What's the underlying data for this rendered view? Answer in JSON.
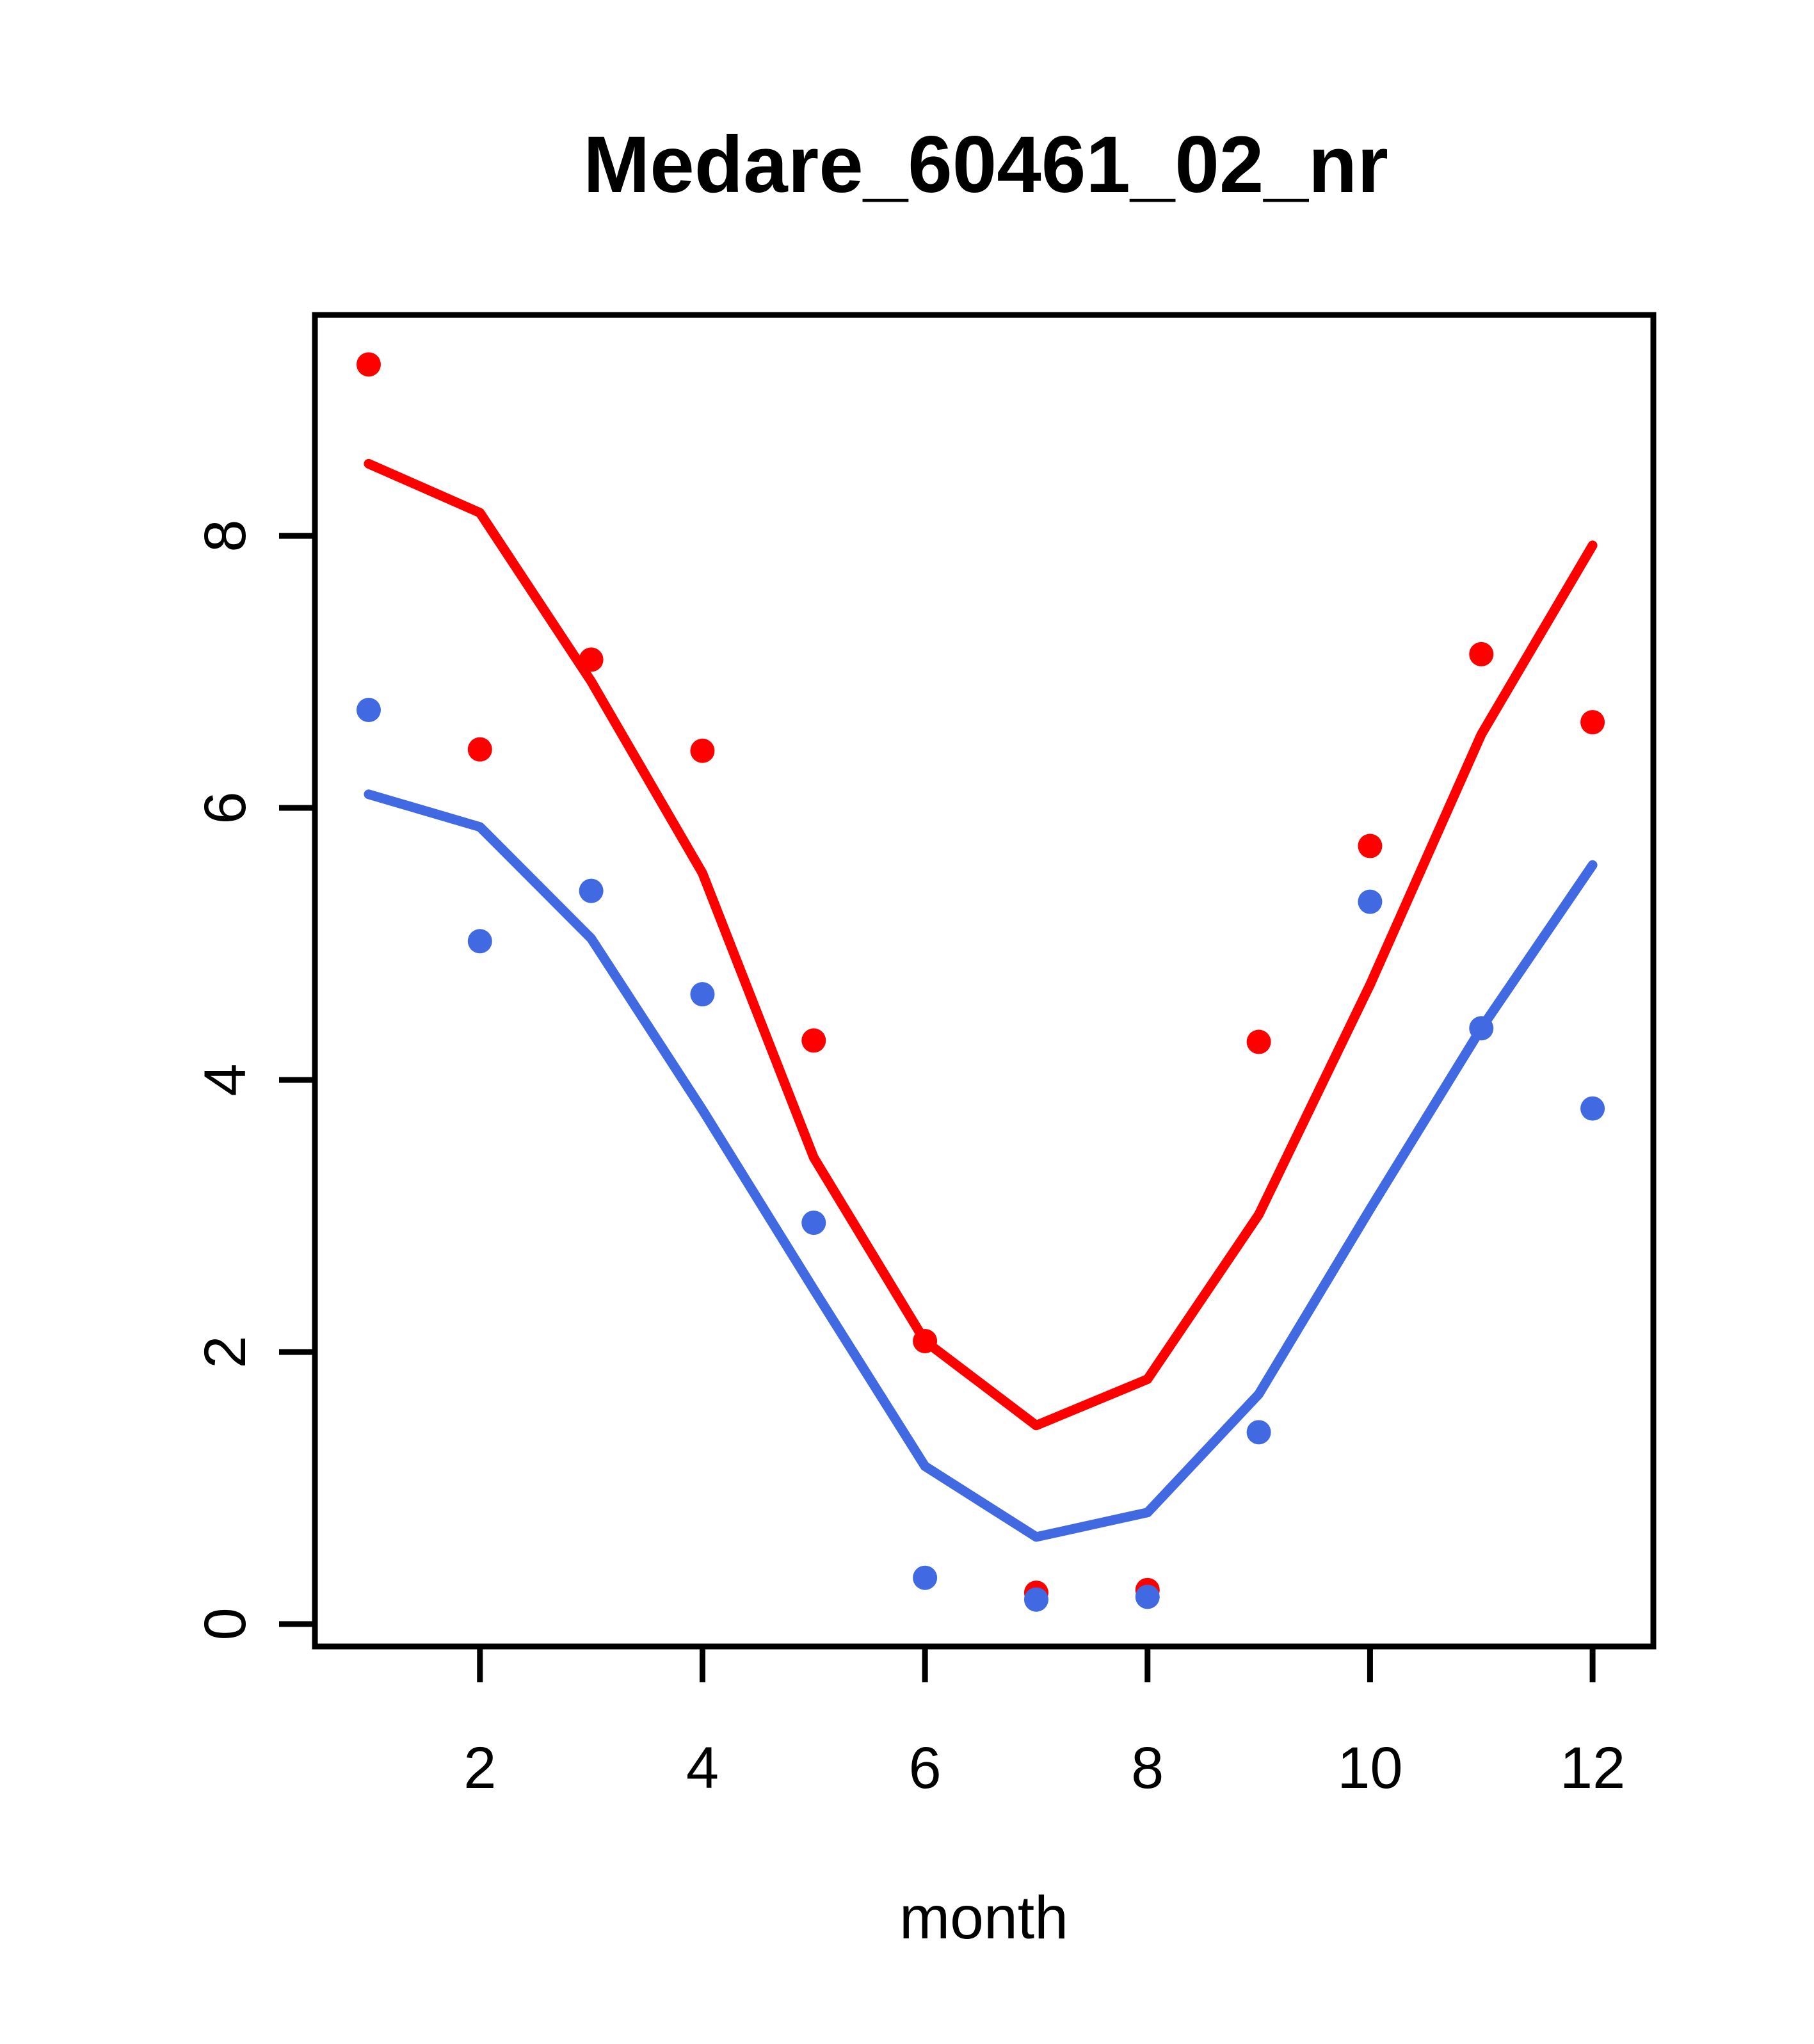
{
  "chart_data": {
    "type": "line",
    "title": "Medare_60461_02_nr",
    "xlabel": "month",
    "ylabel": "",
    "x_ticks": [
      2,
      4,
      6,
      8,
      10,
      12
    ],
    "y_ticks": [
      0,
      2,
      4,
      6,
      8
    ],
    "xlim": [
      0.517,
      12.546
    ],
    "ylim": [
      -0.165,
      9.624
    ],
    "months": [
      1,
      2,
      3,
      4,
      5,
      6,
      7,
      8,
      9,
      10,
      11,
      12
    ],
    "grid": false,
    "legend": "none",
    "colors": {
      "red": "#FF0000",
      "blue": "#4169E1",
      "axis": "#000000"
    },
    "series": [
      {
        "name": "red-fitted-line",
        "kind": "line",
        "color": "#FF0000",
        "values": [
          8.53,
          8.17,
          6.93,
          5.52,
          3.43,
          2.08,
          1.46,
          1.8,
          3.01,
          4.7,
          6.54,
          7.93
        ]
      },
      {
        "name": "blue-fitted-line",
        "kind": "line",
        "color": "#4169E1",
        "values": [
          6.1,
          5.86,
          5.04,
          3.78,
          2.46,
          1.16,
          0.64,
          0.82,
          1.69,
          3.05,
          4.38,
          5.58
        ]
      },
      {
        "name": "red-observed-points",
        "kind": "points",
        "color": "#FF0000",
        "values": [
          9.26,
          6.43,
          7.09,
          6.42,
          4.29,
          2.08,
          0.23,
          0.25,
          4.28,
          5.72,
          7.13,
          6.63
        ]
      },
      {
        "name": "blue-observed-points",
        "kind": "points",
        "color": "#4169E1",
        "values": [
          6.72,
          5.02,
          5.39,
          4.63,
          2.95,
          0.34,
          0.18,
          0.2,
          1.41,
          5.31,
          4.38,
          3.79
        ]
      }
    ]
  }
}
